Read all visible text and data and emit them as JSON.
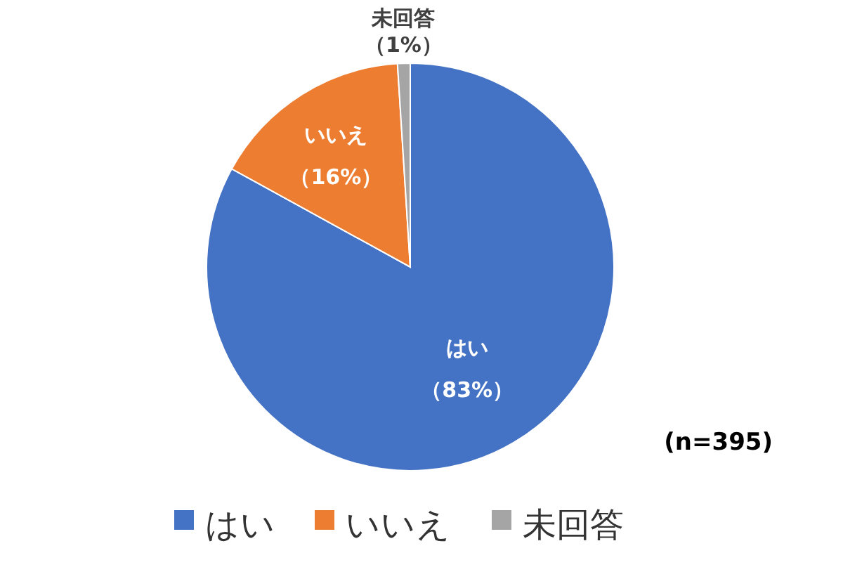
{
  "chart_data": {
    "type": "pie",
    "categories": [
      "はい",
      "いいえ",
      "未回答"
    ],
    "values": [
      83,
      16,
      1
    ],
    "colors": [
      "#4472c4",
      "#ed7d31",
      "#a5a5a5"
    ],
    "value_labels": [
      "（83%）",
      "（16%）",
      "（1%）"
    ],
    "legend": "bottom",
    "annotations": [
      "(n=395)"
    ]
  }
}
